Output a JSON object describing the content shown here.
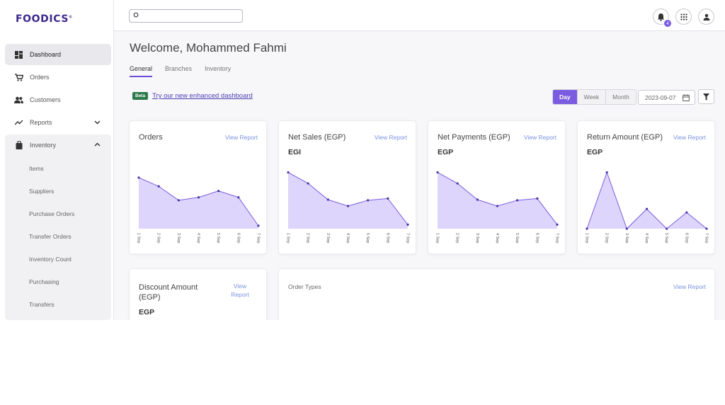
{
  "sidebar": {
    "logo": "FOODICS",
    "items": [
      {
        "label": "Dashboard"
      },
      {
        "label": "Orders"
      },
      {
        "label": "Customers"
      },
      {
        "label": "Reports"
      },
      {
        "label": "Inventory"
      }
    ],
    "inventory_sub": [
      "Items",
      "Suppliers",
      "Purchase Orders",
      "Transfer Orders",
      "Inventory Count",
      "Purchasing",
      "Transfers"
    ]
  },
  "topbar": {
    "notification_count": "4"
  },
  "main": {
    "welcome": "Welcome, Mohammed Fahmi",
    "tabs": [
      "General",
      "Branches",
      "Inventory"
    ],
    "beta_badge": "Beta",
    "beta_link": "Try our new enhanced dashboard",
    "period": [
      "Day",
      "Week",
      "Month"
    ],
    "date": "2023-09-07"
  },
  "cards": [
    {
      "title": "Orders",
      "link": "View Report",
      "sub": ""
    },
    {
      "title": "Net Sales (EGP)",
      "link": "View Report",
      "sub": "EGI"
    },
    {
      "title": "Net Payments (EGP)",
      "link": "View Report",
      "sub": "EGP"
    },
    {
      "title": "Return Amount (EGP)",
      "link": "View Report",
      "sub": "EGP"
    }
  ],
  "discount_card": {
    "title": "Discount Amount (EGP)",
    "link": "View Report",
    "sub": "EGP"
  },
  "order_types_card": {
    "title": "Order Types",
    "link": "View Report"
  },
  "colors": {
    "accent": "#7b5ce0",
    "area_fill": "#ddd5fb",
    "line": "#7b5ce0",
    "logo": "#3d2a8c"
  },
  "chart_data": [
    {
      "type": "area",
      "name": "Orders",
      "x": [
        "1 Sep",
        "2 Sep",
        "3 Sep",
        "4 Sep",
        "5 Sep",
        "6 Sep",
        "7 Sep"
      ],
      "values": [
        0.88,
        0.73,
        0.49,
        0.54,
        0.65,
        0.54,
        0.05
      ]
    },
    {
      "type": "area",
      "name": "Net Sales (EGP)",
      "x": [
        "1 Sep",
        "2 Sep",
        "3 Sep",
        "4 Sep",
        "5 Sep",
        "6 Sep",
        "7 Sep"
      ],
      "values": [
        0.97,
        0.78,
        0.5,
        0.39,
        0.49,
        0.52,
        0.07
      ]
    },
    {
      "type": "area",
      "name": "Net Payments (EGP)",
      "x": [
        "1 Sep",
        "2 Sep",
        "3 Sep",
        "4 Sep",
        "5 Sep",
        "6 Sep",
        "7 Sep"
      ],
      "values": [
        0.97,
        0.78,
        0.5,
        0.39,
        0.49,
        0.52,
        0.07
      ]
    },
    {
      "type": "area",
      "name": "Return Amount (EGP)",
      "x": [
        "1 Sep",
        "2 Sep",
        "3 Sep",
        "4 Sep",
        "5 Sep",
        "6 Sep",
        "7 Sep"
      ],
      "values": [
        0.0,
        0.97,
        0.0,
        0.34,
        0.0,
        0.28,
        0.0
      ]
    }
  ]
}
